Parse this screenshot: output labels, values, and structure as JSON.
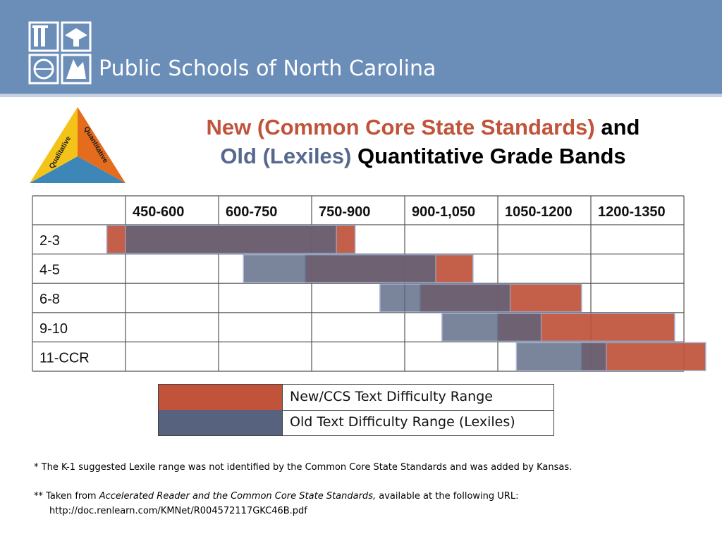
{
  "header": {
    "title": "Public Schools of North Carolina"
  },
  "triangle": {
    "labels": [
      "Qualitative",
      "Quantitative"
    ]
  },
  "title": {
    "part1_red": "New (Common Core State Standards)",
    "part1_black": " and",
    "part2_blue": "Old (Lexiles)",
    "part2_black": " Quantitative Grade Bands"
  },
  "colors": {
    "new_ccss": "#c0533a",
    "old_lexile": "#56627e",
    "overlap": "#6e4a55",
    "header_band": "#6b8eb9"
  },
  "chart_data": {
    "type": "table",
    "columns": [
      "450-600",
      "600-750",
      "750-900",
      "900-1,050",
      "1050-1200",
      "1200-1350"
    ],
    "x_range": [
      450,
      1350
    ],
    "rows": [
      {
        "grade": "2-3",
        "old_lexile": [
          450,
          790
        ],
        "new_ccss": [
          420,
          820
        ]
      },
      {
        "grade": "4-5",
        "old_lexile": [
          640,
          950
        ],
        "new_ccss": [
          740,
          1010
        ]
      },
      {
        "grade": "6-8",
        "old_lexile": [
          860,
          1070
        ],
        "new_ccss": [
          925,
          1185
        ]
      },
      {
        "grade": "9-10",
        "old_lexile": [
          960,
          1120
        ],
        "new_ccss": [
          1050,
          1335
        ]
      },
      {
        "grade": "11-CCR",
        "old_lexile": [
          1080,
          1225
        ],
        "new_ccss": [
          1185,
          1385
        ]
      }
    ],
    "legend": [
      {
        "key": "new_ccss",
        "label": "New/CCS Text Difficulty Range"
      },
      {
        "key": "old_lexile",
        "label": "Old Text Difficulty Range (Lexiles)"
      }
    ]
  },
  "notes": {
    "n1": "* The K-1 suggested Lexile range was not identified by the Common Core State Standards and was added by Kansas.",
    "n2_prefix": "** Taken from ",
    "n2_italic": "Accelerated Reader and the Common Core State Standards,",
    "n2_suffix": " available at the following URL:",
    "n3": "http://doc.renlearn.com/KMNet/R004572117GKC46B.pdf"
  }
}
